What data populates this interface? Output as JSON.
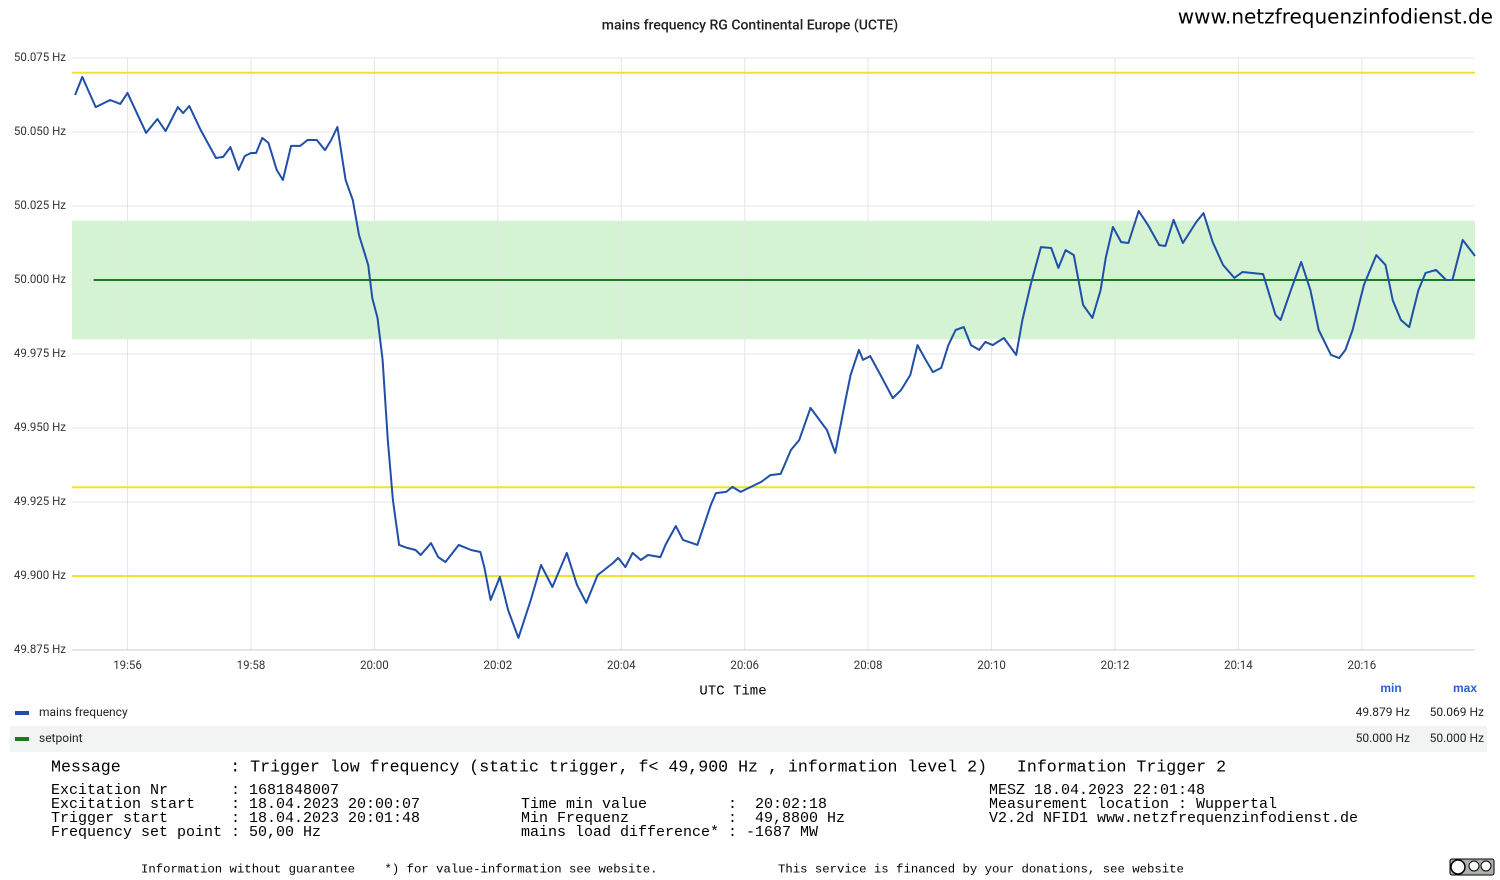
{
  "site": "www.netzfrequenzinfodienst.de",
  "chart_data": {
    "type": "line",
    "title": "mains frequency RG Continental Europe (UCTE)",
    "x_label": "UTC Time",
    "xlim": [
      "19:55:06",
      "20:17:50"
    ],
    "xticks": [
      "19:56",
      "19:58",
      "20:00",
      "20:02",
      "20:04",
      "20:06",
      "20:08",
      "20:10",
      "20:12",
      "20:14",
      "20:16"
    ],
    "ylim": [
      49.875,
      50.075
    ],
    "yticks": [
      {
        "value": 49.875,
        "label": "49.875 Hz"
      },
      {
        "value": 49.9,
        "label": "49.900 Hz"
      },
      {
        "value": 49.925,
        "label": "49.925 Hz"
      },
      {
        "value": 49.95,
        "label": "49.950 Hz"
      },
      {
        "value": 49.975,
        "label": "49.975 Hz"
      },
      {
        "value": 50,
        "label": "50.000 Hz"
      },
      {
        "value": 50.025,
        "label": "50.025 Hz"
      },
      {
        "value": 50.05,
        "label": "50.050 Hz"
      },
      {
        "value": 50.075,
        "label": "50.075 Hz"
      }
    ],
    "grid": true,
    "band": {
      "range": [
        49.98,
        50.02
      ],
      "color": "#d3f3d3"
    },
    "reference_lines": [
      {
        "value": 50.07,
        "color": "#f0e030"
      },
      {
        "value": 49.93,
        "color": "#f0e030"
      },
      {
        "value": 49.9,
        "color": "#f0e030"
      }
    ],
    "legend_headers": [
      "min",
      "max"
    ],
    "series": [
      {
        "name": "mains frequency",
        "color": "#1f4fa8",
        "stats": [
          "49.879 Hz",
          "50.069 Hz"
        ],
        "x": [
          "19:55:09",
          "19:55:16",
          "19:55:29",
          "19:55:43",
          "19:55:53",
          "19:56:00",
          "19:56:18",
          "19:56:29",
          "19:56:37",
          "19:56:49",
          "19:56:54",
          "19:57:00",
          "19:57:11",
          "19:57:26",
          "19:57:33",
          "19:57:40",
          "19:57:48",
          "19:57:54",
          "19:58:00",
          "19:58:05",
          "19:58:11",
          "19:58:17",
          "19:58:25",
          "19:58:31",
          "19:58:39",
          "19:58:48",
          "19:58:55",
          "19:59:04",
          "19:59:12",
          "19:59:18",
          "19:59:24",
          "19:59:32",
          "19:59:39",
          "19:59:45",
          "19:59:54",
          "19:59:58",
          "20:00:03",
          "20:00:08",
          "20:00:13",
          "20:00:18",
          "20:00:24",
          "20:00:32",
          "20:00:40",
          "20:00:45",
          "20:00:55",
          "20:01:02",
          "20:01:09",
          "20:01:22",
          "20:01:34",
          "20:01:43",
          "20:01:47",
          "20:01:53",
          "20:02:02",
          "20:02:10",
          "20:02:20",
          "20:02:32",
          "20:02:42",
          "20:02:53",
          "20:03:07",
          "20:03:17",
          "20:03:26",
          "20:03:37",
          "20:03:52",
          "20:03:57",
          "20:04:04",
          "20:04:11",
          "20:04:19",
          "20:04:26",
          "20:04:38",
          "20:04:43",
          "20:04:53",
          "20:05:00",
          "20:05:14",
          "20:05:27",
          "20:05:32",
          "20:05:42",
          "20:05:48",
          "20:05:56",
          "20:06:16",
          "20:06:25",
          "20:06:35",
          "20:06:45",
          "20:06:53",
          "20:07:04",
          "20:07:20",
          "20:07:28",
          "20:07:38",
          "20:07:43",
          "20:07:51",
          "20:07:55",
          "20:08:02",
          "20:08:12",
          "20:08:24",
          "20:08:32",
          "20:08:41",
          "20:08:48",
          "20:08:56",
          "20:09:03",
          "20:09:11",
          "20:09:18",
          "20:09:25",
          "20:09:33",
          "20:09:40",
          "20:09:48",
          "20:09:54",
          "20:10:01",
          "20:10:12",
          "20:10:24",
          "20:10:30",
          "20:10:38",
          "20:10:48",
          "20:10:58",
          "20:11:05",
          "20:11:12",
          "20:11:20",
          "20:11:29",
          "20:11:38",
          "20:11:46",
          "20:11:51",
          "20:11:58",
          "20:12:06",
          "20:12:13",
          "20:12:23",
          "20:12:32",
          "20:12:43",
          "20:12:49",
          "20:12:57",
          "20:13:06",
          "20:13:19",
          "20:13:26",
          "20:13:35",
          "20:13:45",
          "20:13:56",
          "20:14:04",
          "20:14:24",
          "20:14:36",
          "20:14:41",
          "20:14:51",
          "20:15:01",
          "20:15:10",
          "20:15:18",
          "20:15:30",
          "20:15:38",
          "20:15:44",
          "20:15:51",
          "20:16:02",
          "20:16:14",
          "20:16:23",
          "20:16:30",
          "20:16:38",
          "20:16:46",
          "20:16:55",
          "20:17:02",
          "20:17:12",
          "20:17:22",
          "20:17:28",
          "20:17:38",
          "20:17:50"
        ],
        "values": [
          50.0625,
          50.0686,
          50.0584,
          50.0608,
          50.0595,
          50.0632,
          50.0497,
          50.0544,
          50.0503,
          50.0584,
          50.0564,
          50.0588,
          50.0507,
          50.0412,
          50.0416,
          50.0449,
          50.0372,
          50.0419,
          50.0429,
          50.0429,
          50.048,
          50.0463,
          50.0372,
          50.0338,
          50.0453,
          50.0453,
          50.0473,
          50.0473,
          50.0439,
          50.0473,
          50.0517,
          50.0338,
          50.027,
          50.0152,
          50.0051,
          49.9939,
          49.9872,
          49.973,
          49.9459,
          49.9257,
          49.9105,
          49.9095,
          49.9088,
          49.9071,
          49.9111,
          49.9064,
          49.9047,
          49.9105,
          49.9088,
          49.9081,
          49.9027,
          49.8919,
          49.8997,
          49.8885,
          49.8791,
          49.8919,
          49.9037,
          49.8963,
          49.9078,
          49.897,
          49.8909,
          49.9003,
          49.9044,
          49.9061,
          49.903,
          49.9078,
          49.9054,
          49.9071,
          49.9064,
          49.9105,
          49.9169,
          49.9122,
          49.9105,
          49.924,
          49.928,
          49.9284,
          49.9301,
          49.9284,
          49.9318,
          49.9341,
          49.9345,
          49.9426,
          49.9459,
          49.9568,
          49.9493,
          49.9416,
          49.9595,
          49.9679,
          49.9764,
          49.973,
          49.9743,
          49.9679,
          49.9601,
          49.9628,
          49.9679,
          49.978,
          49.973,
          49.9689,
          49.9703,
          49.978,
          49.9831,
          49.9841,
          49.978,
          49.9764,
          49.9791,
          49.978,
          49.9804,
          49.9747,
          49.9865,
          49.9983,
          50.0111,
          50.0108,
          50.0041,
          50.0101,
          50.0084,
          49.9916,
          49.9872,
          49.9966,
          50.0074,
          50.0179,
          50.0128,
          50.0125,
          50.0233,
          50.0186,
          50.0118,
          50.0115,
          50.0203,
          50.0125,
          50.0196,
          50.0226,
          50.0128,
          50.0051,
          50.0007,
          50.0027,
          50.002,
          49.9882,
          49.9865,
          49.9966,
          50.0061,
          49.9966,
          49.9831,
          49.9747,
          49.9736,
          49.9764,
          49.9831,
          49.9983,
          50.0084,
          50.0051,
          49.9932,
          49.9865,
          49.9841,
          49.9966,
          50.0024,
          50.0034,
          50,
          50,
          50.0135,
          50.0081
        ]
      },
      {
        "name": "setpoint",
        "color": "#1b7a1b",
        "stats": [
          "50.000 Hz",
          "50.000 Hz"
        ],
        "x": [
          "19:55:27",
          "20:17:50"
        ],
        "values": [
          50,
          50
        ]
      }
    ]
  },
  "info": {
    "message": "Message           : Trigger low frequency (static trigger, f< 49,900 Hz , information level 2)   Information Trigger 2",
    "columns": [
      [
        "Excitation Nr       : 1681848007",
        "Excitation start    : 18.04.2023 20:00:07",
        "Trigger start       : 18.04.2023 20:01:48",
        "Frequency set point : 50,00 Hz"
      ],
      [
        "",
        "Time min value         :  20:02:18",
        "Min Frequenz           :  49,8800 Hz",
        "mains load difference* : -1687 MW"
      ],
      [
        "MESZ 18.04.2023 22:01:48",
        "Measurement location : Wuppertal",
        "V2.2d NFID1 www.netzfrequenzinfodienst.de",
        ""
      ]
    ],
    "footer": [
      "Information without guarantee    *) for value-information see website.",
      "This service is financed by your donations, see website"
    ]
  }
}
